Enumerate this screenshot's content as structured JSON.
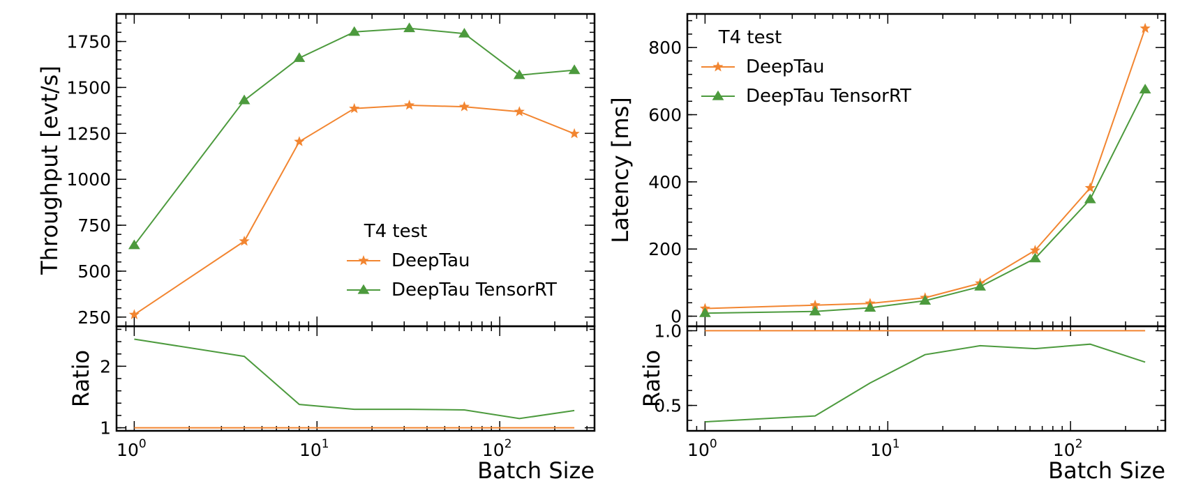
{
  "figure": {
    "colors": {
      "deeptau": "#f28530",
      "tensorrt": "#4c9a3d"
    }
  },
  "chart_data": [
    {
      "type": "line",
      "x_scale": "log",
      "x": [
        1,
        4,
        8,
        16,
        32,
        64,
        128,
        256
      ],
      "xlim": [
        0.8,
        330
      ],
      "xlabel": "Batch Size",
      "x_tick_labels": [
        "10^0",
        "10^1",
        "10^2"
      ],
      "ylabel": "Throughput [evt/s]",
      "ylim": [
        200,
        1900
      ],
      "y_ticks": [
        250,
        500,
        750,
        1000,
        1250,
        1500,
        1750
      ],
      "legend": {
        "title": "T4 test",
        "placement": "lower-right"
      },
      "series": [
        {
          "name": "DeepTau",
          "marker": "star",
          "color": "#f28530",
          "values": [
            263,
            663,
            1205,
            1385,
            1403,
            1395,
            1368,
            1248
          ]
        },
        {
          "name": "DeepTau TensorRT",
          "marker": "triangle",
          "color": "#4c9a3d",
          "values": [
            641,
            1430,
            1660,
            1802,
            1822,
            1793,
            1567,
            1594
          ]
        }
      ],
      "ratio": {
        "ylabel": "Ratio",
        "ylim": [
          0.95,
          2.65
        ],
        "y_ticks": [
          1,
          2
        ],
        "series": [
          {
            "name": "DeepTau",
            "color": "#f28530",
            "values": [
              1,
              1,
              1,
              1,
              1,
              1,
              1,
              1
            ]
          },
          {
            "name": "DeepTau TensorRT",
            "color": "#4c9a3d",
            "values": [
              2.44,
              2.16,
              1.38,
              1.3,
              1.3,
              1.29,
              1.15,
              1.28
            ]
          }
        ]
      }
    },
    {
      "type": "line",
      "x_scale": "log",
      "x": [
        1,
        4,
        8,
        16,
        32,
        64,
        128,
        256
      ],
      "xlim": [
        0.8,
        330
      ],
      "xlabel": "Batch Size",
      "x_tick_labels": [
        "10^0",
        "10^1",
        "10^2"
      ],
      "ylabel": "Latency [ms]",
      "ylim": [
        -30,
        900
      ],
      "y_ticks": [
        0,
        200,
        400,
        600,
        800
      ],
      "legend": {
        "title": "T4 test",
        "placement": "upper-left"
      },
      "series": [
        {
          "name": "DeepTau",
          "marker": "star",
          "color": "#f28530",
          "values": [
            23,
            33,
            38,
            55,
            98,
            196,
            382,
            857
          ]
        },
        {
          "name": "DeepTau TensorRT",
          "marker": "triangle",
          "color": "#4c9a3d",
          "values": [
            9,
            14,
            25,
            46,
            88,
            172,
            348,
            675
          ]
        }
      ],
      "ratio": {
        "ylabel": "Ratio",
        "ylim": [
          0.33,
          1.03
        ],
        "y_ticks": [
          0.5,
          1.0
        ],
        "y_tick_labels": [
          "0.5",
          "1.0"
        ],
        "series": [
          {
            "name": "DeepTau",
            "color": "#f28530",
            "values": [
              1,
              1,
              1,
              1,
              1,
              1,
              1,
              1
            ]
          },
          {
            "name": "DeepTau TensorRT",
            "color": "#4c9a3d",
            "values": [
              0.39,
              0.43,
              0.65,
              0.84,
              0.9,
              0.88,
              0.91,
              0.79
            ]
          }
        ]
      }
    }
  ]
}
